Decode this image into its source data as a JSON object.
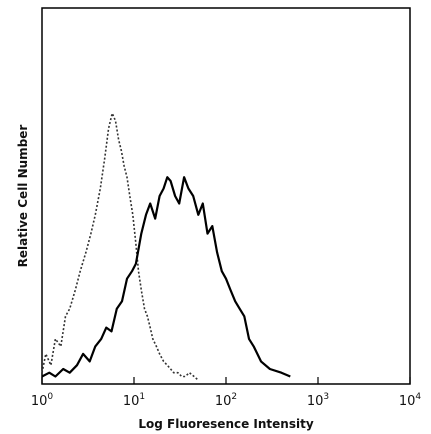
{
  "chart_data": {
    "type": "line",
    "xlabel": "Log Fluoresence Intensity",
    "ylabel": "Relative Cell Number",
    "x_scale": "log",
    "xlim": [
      1,
      10000
    ],
    "ylim": [
      0,
      100
    ],
    "x_ticks": [
      {
        "value": 1,
        "mantissa": "10",
        "exponent": "0"
      },
      {
        "value": 10,
        "mantissa": "10",
        "exponent": "1"
      },
      {
        "value": 100,
        "mantissa": "10",
        "exponent": "2"
      },
      {
        "value": 1000,
        "mantissa": "10",
        "exponent": "3"
      },
      {
        "value": 10000,
        "mantissa": "10",
        "exponent": "4"
      }
    ],
    "grid": false,
    "legend": "none",
    "series": [
      {
        "style": "dotted",
        "color": "#333333",
        "x": [
          1.0,
          1.1,
          1.25,
          1.4,
          1.6,
          1.8,
          2.0,
          2.3,
          2.6,
          3.0,
          3.4,
          3.8,
          4.3,
          4.8,
          5.3,
          5.8,
          6.3,
          6.8,
          7.3,
          7.8,
          8.4,
          9.0,
          9.7,
          10.4,
          11.2,
          12.0,
          13.0,
          14.0,
          15.0,
          16.0,
          17.5,
          19.0,
          21.0,
          23.0,
          25.0,
          27.0,
          30.0,
          33.0,
          36.0,
          40.0,
          45.0,
          50.0
        ],
        "y": [
          3,
          8,
          5,
          12,
          10,
          18,
          20,
          25,
          30,
          35,
          40,
          45,
          52,
          60,
          68,
          72,
          70,
          65,
          62,
          58,
          55,
          50,
          45,
          38,
          30,
          25,
          20,
          18,
          15,
          12,
          10,
          8,
          6,
          5,
          4,
          3,
          3,
          2,
          2,
          3,
          2,
          1
        ]
      },
      {
        "style": "solid",
        "color": "#000000",
        "x": [
          1.0,
          1.2,
          1.4,
          1.7,
          2.0,
          2.4,
          2.8,
          3.3,
          3.8,
          4.4,
          5.0,
          5.7,
          6.5,
          7.4,
          8.4,
          9.5,
          10.5,
          12.0,
          13.5,
          15.0,
          17.0,
          19.0,
          21.0,
          23.0,
          25.0,
          28.0,
          31.0,
          35.0,
          39.0,
          44.0,
          50.0,
          56.0,
          63.0,
          71.0,
          80.0,
          90.0,
          100.0,
          112.0,
          126.0,
          141.0,
          158.0,
          178.0,
          200.0,
          240.0,
          300.0,
          400.0,
          500.0
        ],
        "y": [
          2,
          3,
          2,
          4,
          3,
          5,
          8,
          6,
          10,
          12,
          15,
          14,
          20,
          22,
          28,
          30,
          32,
          40,
          45,
          48,
          44,
          50,
          52,
          55,
          54,
          50,
          48,
          55,
          52,
          50,
          45,
          48,
          40,
          42,
          35,
          30,
          28,
          25,
          22,
          20,
          18,
          12,
          10,
          6,
          4,
          3,
          2
        ]
      }
    ]
  }
}
